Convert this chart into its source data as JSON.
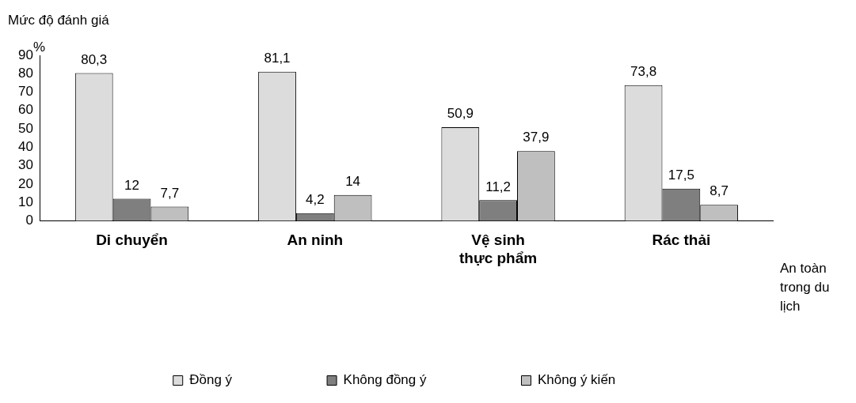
{
  "chart_data": {
    "type": "bar",
    "title": "Mức độ đánh giá",
    "ylabel": "%",
    "xlabel": "An toàn trong du lịch",
    "categories": [
      "Di chuyển",
      "An ninh",
      "Vệ sinh thực phẩm",
      "Rác thải"
    ],
    "series": [
      {
        "name": "Đồng ý",
        "color": "#dcdcdc",
        "values": [
          80.3,
          81.1,
          50.9,
          73.8
        ],
        "value_labels": [
          "80,3",
          "81,1",
          "50,9",
          "73,8"
        ]
      },
      {
        "name": "Không đồng ý",
        "color": "#7f7f7f",
        "values": [
          12,
          4.2,
          11.2,
          17.5
        ],
        "value_labels": [
          "12",
          "4,2",
          "11,2",
          "17,5"
        ]
      },
      {
        "name": "Không ý kiến",
        "color": "#bfbfbf",
        "values": [
          7.7,
          14,
          37.9,
          8.7
        ],
        "value_labels": [
          "7,7",
          "14",
          "37,9",
          "8,7"
        ]
      }
    ],
    "ylim": [
      0,
      90
    ],
    "yticks": [
      0,
      10,
      20,
      30,
      40,
      50,
      60,
      70,
      80,
      90
    ],
    "grid": false,
    "legend": "bottom"
  }
}
